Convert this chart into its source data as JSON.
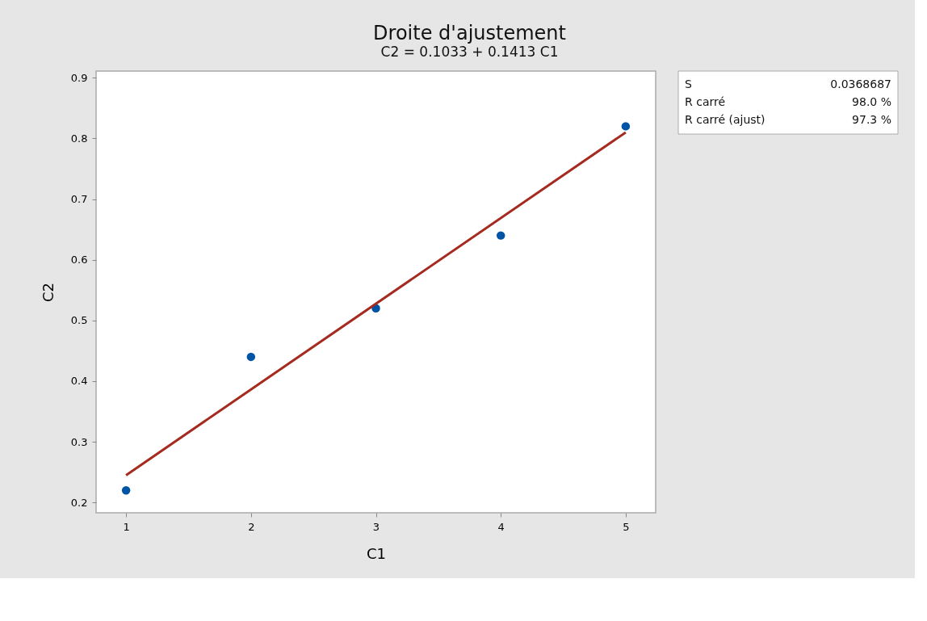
{
  "chart_data": {
    "type": "scatter",
    "title": "Droite d'ajustement",
    "subtitle": "C2 = 0.1033 + 0.1413 C1",
    "xlabel": "C1",
    "ylabel": "C2",
    "xlim": [
      0.76,
      5.24
    ],
    "xticks": [
      1,
      2,
      3,
      4,
      5
    ],
    "ylim": [
      0.183,
      0.911
    ],
    "yticks": [
      0.2,
      0.3,
      0.4,
      0.5,
      0.6,
      0.7,
      0.8,
      0.9
    ],
    "grid": false,
    "series": [
      {
        "color": "#0054a6",
        "marker": "circle",
        "x": [
          1,
          2,
          3,
          4,
          5
        ],
        "values": [
          0.22,
          0.44,
          0.52,
          0.64,
          0.82
        ]
      },
      {
        "type": "line",
        "color": "#a52a1f",
        "line_style": "solid",
        "x": [
          1,
          5
        ],
        "values": [
          0.245,
          0.81
        ]
      }
    ],
    "annotations": [
      "S",
      "0.0368687",
      "R carré",
      "98.0 %",
      "R carré (ajust)",
      "97.3 %"
    ]
  }
}
